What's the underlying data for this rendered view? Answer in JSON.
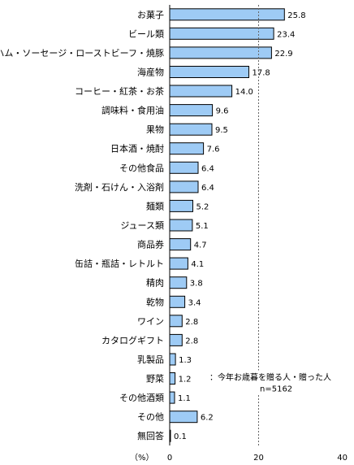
{
  "chart_data": {
    "type": "bar",
    "orientation": "horizontal",
    "categories": [
      "お菓子",
      "ビール類",
      "ハム・ソーセージ・ローストビーフ・焼豚",
      "海産物",
      "コーヒー・紅茶・お茶",
      "調味料・食用油",
      "果物",
      "日本酒・焼酎",
      "その他食品",
      "洗剤・石けん・入浴剤",
      "麺類",
      "ジュース類",
      "商品券",
      "缶詰・瓶詰・レトルト",
      "精肉",
      "乾物",
      "ワイン",
      "カタログギフト",
      "乳製品",
      "野菜",
      "その他酒類",
      "その他",
      "無回答"
    ],
    "values": [
      25.8,
      23.4,
      22.9,
      17.8,
      14.0,
      9.6,
      9.5,
      7.6,
      6.4,
      6.4,
      5.2,
      5.1,
      4.7,
      4.1,
      3.8,
      3.4,
      2.8,
      2.8,
      1.3,
      1.2,
      1.1,
      6.2,
      0.1
    ],
    "value_labels": [
      "25.8",
      "23.4",
      "22.9",
      "17.8",
      "14.0",
      "9.6",
      "9.5",
      "7.6",
      "6.4",
      "6.4",
      "5.2",
      "5.1",
      "4.7",
      "4.1",
      "3.8",
      "3.4",
      "2.8",
      "2.8",
      "1.3",
      "1.2",
      "1.1",
      "6.2",
      "0.1"
    ],
    "xlim": [
      0,
      40
    ],
    "x_ticks": [
      0,
      20,
      40
    ],
    "x_tick_labels": [
      "0",
      "20",
      "40"
    ],
    "x_unit_label": "（%）",
    "gridline_at": 20,
    "bar_color": "#9ecbf5",
    "annotation": {
      "line1": "：今年お歳暮を贈る人・贈った人",
      "line2": "n=5162"
    }
  }
}
